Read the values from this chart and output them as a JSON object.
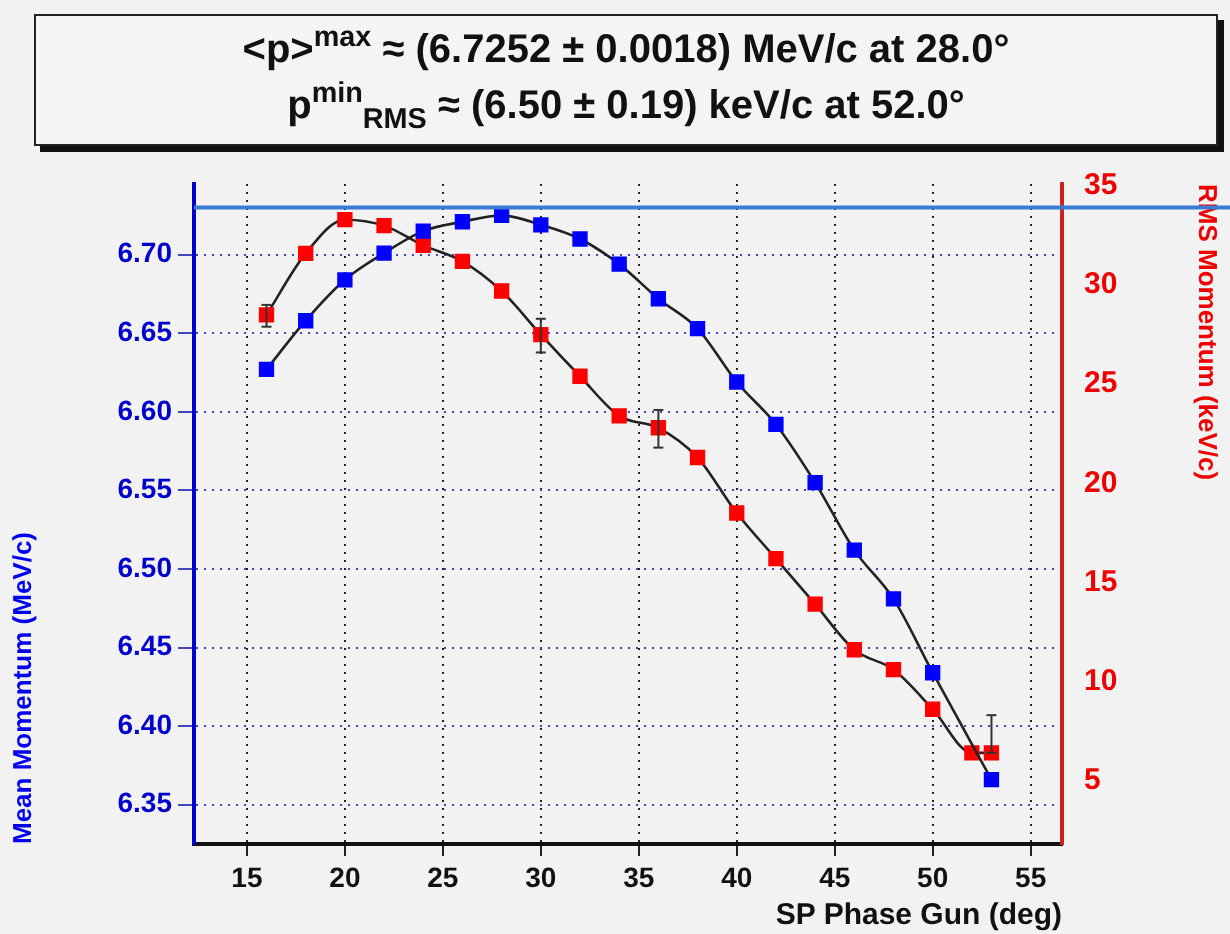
{
  "chart_data": {
    "type": "line",
    "title": "<p>$^{max}$ ≈ (6.7252 ± 0.0018) MeV/c at 28.0°",
    "subtitle": "p$^{min}$$_{RMS}$ ≈ (6.50 ± 0.19) keV/c at 52.0°",
    "xlabel": "SP Phase Gun (deg)",
    "ylabel": "Mean Momentum (MeV/c)",
    "y2label": "RMS Momentum (keV/c)",
    "xlim": [
      12.3,
      56.6
    ],
    "xticks": [
      15,
      20,
      25,
      30,
      35,
      40,
      45,
      50,
      55
    ],
    "ylim": [
      6.325,
      6.745
    ],
    "yticks": [
      {
        "value": 6.35,
        "label": "6.35"
      },
      {
        "value": 6.4,
        "label": "6.40"
      },
      {
        "value": 6.45,
        "label": "6.45"
      },
      {
        "value": 6.5,
        "label": "6.50"
      },
      {
        "value": 6.55,
        "label": "6.55"
      },
      {
        "value": 6.6,
        "label": "6.60"
      },
      {
        "value": 6.65,
        "label": "6.65"
      },
      {
        "value": 6.7,
        "label": "6.70"
      }
    ],
    "y2lim": [
      1.8,
      35.1
    ],
    "y2ticks": [
      5,
      10,
      15,
      20,
      25,
      30,
      35
    ],
    "grid": true,
    "legend": false,
    "marker": "square",
    "line_style": "solid",
    "ref_lines": [
      {
        "axis": "y",
        "value": 6.73,
        "color": "#3a7bd5"
      }
    ],
    "series": [
      {
        "color": "#0000ff",
        "x": [
          16,
          18,
          20,
          22,
          24,
          26,
          28,
          30,
          32,
          34,
          36,
          38,
          40,
          42,
          44,
          46,
          48,
          50,
          53
        ],
        "values": [
          6.627,
          6.658,
          6.684,
          6.701,
          6.715,
          6.721,
          6.725,
          6.719,
          6.71,
          6.694,
          6.672,
          6.653,
          6.619,
          6.592,
          6.555,
          6.512,
          6.481,
          6.434,
          6.366
        ]
      },
      {
        "color": "#ff0000",
        "axis": "y2",
        "x": [
          16,
          18,
          20,
          22,
          24,
          26,
          28,
          30,
          32,
          34,
          36,
          38,
          40,
          42,
          44,
          46,
          48,
          50,
          52,
          53
        ],
        "values": [
          28.5,
          31.6,
          33.3,
          33.0,
          32.0,
          31.2,
          29.7,
          27.5,
          25.4,
          23.4,
          22.8,
          21.3,
          18.5,
          16.2,
          13.9,
          11.6,
          10.6,
          8.6,
          6.4,
          6.4
        ],
        "errors": [
          [
            27.9,
            29.0
          ],
          null,
          null,
          null,
          null,
          null,
          null,
          [
            26.6,
            28.3
          ],
          null,
          null,
          [
            21.8,
            23.7
          ],
          null,
          null,
          null,
          null,
          null,
          null,
          null,
          null,
          [
            6.4,
            8.3
          ]
        ]
      }
    ]
  }
}
